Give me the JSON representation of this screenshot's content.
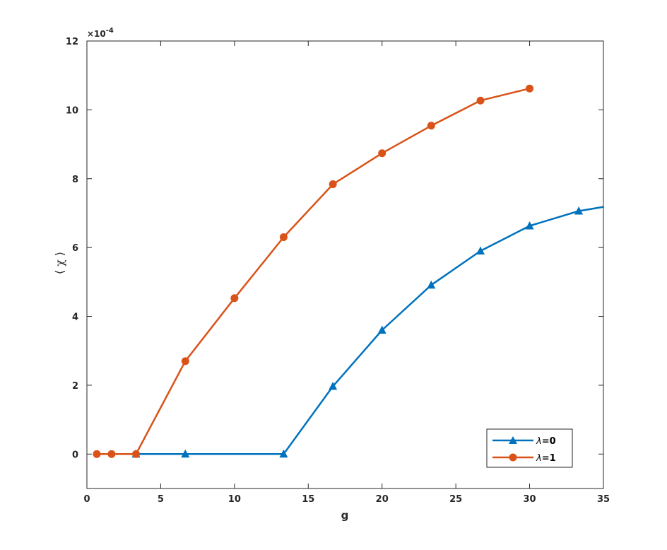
{
  "chart_data": {
    "type": "line",
    "xlabel": "g",
    "ylabel": "⟨ χ ⟩",
    "y_exponent_label": "×10",
    "y_exponent_power": "-4",
    "xlim": [
      0,
      35
    ],
    "ylim": [
      -1,
      12
    ],
    "x_ticks": [
      0,
      5,
      10,
      15,
      20,
      25,
      30,
      35
    ],
    "y_ticks": [
      0,
      2,
      4,
      6,
      8,
      10,
      12
    ],
    "grid": false,
    "legend_position": "bottom-right",
    "series": [
      {
        "name": "λ=0",
        "name_symbol": "λ",
        "name_value": "=0",
        "marker": "triangle",
        "color": "#0072BD",
        "x": [
          3.33,
          6.67,
          13.33,
          16.67,
          20.0,
          23.33,
          26.67,
          30.0,
          33.33,
          36.67
        ],
        "y": [
          0,
          0,
          0,
          1.97,
          3.6,
          4.91,
          5.9,
          6.63,
          7.06,
          7.3
        ]
      },
      {
        "name": "λ=1",
        "name_symbol": "λ",
        "name_value": "=1",
        "marker": "circle",
        "color": "#D95319",
        "x": [
          0.67,
          1.67,
          3.33,
          6.67,
          10.0,
          13.33,
          16.67,
          20.0,
          23.33,
          26.67,
          30.0
        ],
        "y": [
          0,
          0,
          0,
          2.7,
          4.53,
          6.3,
          7.84,
          8.74,
          9.54,
          10.27,
          10.62
        ]
      }
    ]
  }
}
